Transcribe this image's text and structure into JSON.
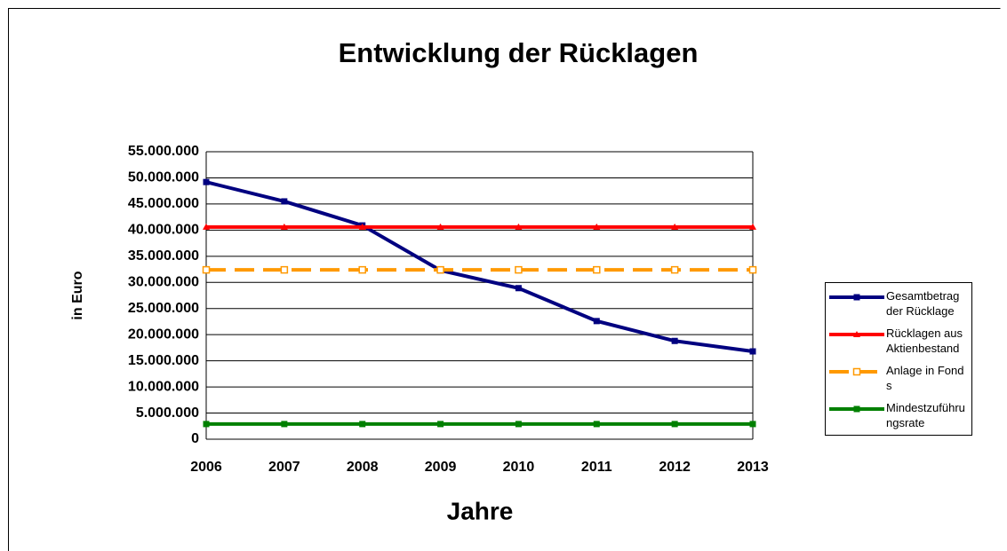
{
  "chart_data": {
    "type": "line",
    "title": "Entwicklung der Rücklagen",
    "x_label": "Jahre",
    "y_label": "in Euro",
    "categories": [
      "2006",
      "2007",
      "2008",
      "2009",
      "2010",
      "2011",
      "2012",
      "2013"
    ],
    "series": [
      {
        "name": "Gesamtbetrag der Rücklage",
        "color": "#000080",
        "marker": "square",
        "dashed": false,
        "values": [
          49200000,
          45500000,
          40900000,
          32300000,
          28900000,
          22600000,
          18800000,
          16800000
        ]
      },
      {
        "name": "Rücklagen aus Aktienbestand",
        "color": "#ff0000",
        "marker": "triangle",
        "dashed": false,
        "values": [
          40600000,
          40600000,
          40600000,
          40600000,
          40600000,
          40600000,
          40600000,
          40600000
        ]
      },
      {
        "name": "Anlage in Fonds",
        "color": "#ff9900",
        "marker": "hollow-square",
        "dashed": true,
        "values": [
          32400000,
          32400000,
          32400000,
          32400000,
          32400000,
          32400000,
          32400000,
          32400000
        ]
      },
      {
        "name": "Mindestzuführungsrate",
        "color": "#008000",
        "marker": "square",
        "dashed": false,
        "values": [
          2900000,
          2900000,
          2900000,
          2900000,
          2900000,
          2900000,
          2900000,
          2900000
        ]
      }
    ],
    "ylim": [
      0,
      55000000
    ],
    "yticks": [
      0,
      {
        "value": 5000000,
        "label": "5.000.000"
      },
      {
        "value": 10000000,
        "label": "10.000.000"
      },
      {
        "value": 15000000,
        "label": "15.000.000"
      },
      {
        "value": 20000000,
        "label": "20.000.000"
      },
      {
        "value": 25000000,
        "label": "25.000.000"
      },
      {
        "value": 30000000,
        "label": "30.000.000"
      },
      {
        "value": 35000000,
        "label": "35.000.000"
      },
      {
        "value": 40000000,
        "label": "40.000.000"
      },
      {
        "value": 45000000,
        "label": "45.000.000"
      },
      {
        "value": 50000000,
        "label": "50.000.000"
      },
      {
        "value": 55000000,
        "label": "55.000.000"
      }
    ],
    "grid": true,
    "legend": "right"
  }
}
